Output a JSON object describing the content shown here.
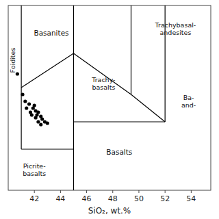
{
  "chart_data": {
    "type": "scatter",
    "xlabel": "SiO₂, wt.%",
    "xlim": [
      40.0,
      55.5
    ],
    "ylim": [
      0.0,
      13.5
    ],
    "xticks": [
      42,
      44,
      46,
      48,
      50,
      52,
      54
    ],
    "yticks": [],
    "tick_labels": "x",
    "grid": false,
    "series": [
      {
        "type": "scatter",
        "color": "#000000",
        "x": [
          40.7,
          41.1,
          41.3,
          41.4,
          41.6,
          41.7,
          41.8,
          41.9,
          42.0,
          42.1,
          42.1,
          42.2,
          42.3,
          42.3,
          42.5,
          42.5,
          42.6,
          42.8,
          43.0
        ],
        "values": [
          8.5,
          7.0,
          6.5,
          6.0,
          6.3,
          5.7,
          5.5,
          6.0,
          6.2,
          5.3,
          5.8,
          5.5,
          5.0,
          5.7,
          5.4,
          4.8,
          5.2,
          5.0,
          4.9
        ]
      },
      {
        "type": "line",
        "color": "#000000",
        "x": [
          41.0,
          41.0
        ],
        "values": [
          3.0,
          13.5
        ]
      },
      {
        "type": "line",
        "color": "#000000",
        "x": [
          41.0,
          45.0
        ],
        "values": [
          3.0,
          3.0
        ]
      },
      {
        "type": "line",
        "color": "#000000",
        "x": [
          41.0,
          45.0
        ],
        "values": [
          7.5,
          10.0
        ]
      },
      {
        "type": "line",
        "color": "#000000",
        "x": [
          45.0,
          45.0
        ],
        "values": [
          0.0,
          13.5
        ]
      },
      {
        "type": "line",
        "color": "#000000",
        "x": [
          45.0,
          52.0
        ],
        "values": [
          5.0,
          5.0
        ]
      },
      {
        "type": "line",
        "color": "#000000",
        "x": [
          52.0,
          52.0
        ],
        "values": [
          5.0,
          13.5
        ]
      },
      {
        "type": "line",
        "color": "#000000",
        "x": [
          45.0,
          49.4
        ],
        "values": [
          10.0,
          7.0
        ]
      },
      {
        "type": "line",
        "color": "#000000",
        "x": [
          49.4,
          52.0
        ],
        "values": [
          7.0,
          5.0
        ]
      },
      {
        "type": "line",
        "color": "#000000",
        "x": [
          49.4,
          49.4
        ],
        "values": [
          7.0,
          13.5
        ]
      }
    ],
    "annotations": [
      {
        "text": "Foidites",
        "x": 40.35,
        "y": 9.5,
        "orientation": "vertical"
      },
      {
        "text": "Basanites",
        "x": 43.3,
        "y": 11.5
      },
      {
        "text": "Picrite-\nbasalts",
        "x": 42.0,
        "y": 1.5
      },
      {
        "text": "Basalts",
        "x": 48.5,
        "y": 2.8
      },
      {
        "text": "Trachy-\nbasalts",
        "x": 47.3,
        "y": 7.8
      },
      {
        "text": "Trachybasal-\nandesites",
        "x": 52.8,
        "y": 11.8
      },
      {
        "text": "Ba-\nand-",
        "x": 53.8,
        "y": 6.5
      }
    ]
  }
}
